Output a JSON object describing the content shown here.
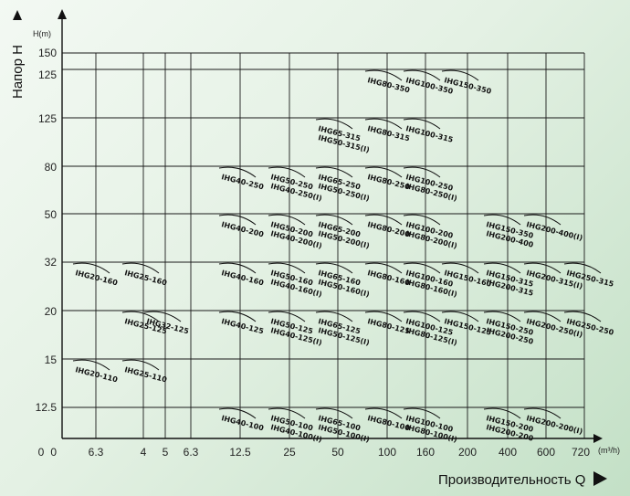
{
  "chart_data": {
    "type": "scatter",
    "xlabel": "Производительность Q",
    "ylabel": "Напор H",
    "x_unit": "(m³/h)",
    "y_unit": "H(m)",
    "x_ticks": [
      "0",
      "6.3",
      "4",
      "5",
      "6.3",
      "12.5",
      "25",
      "50",
      "100",
      "160",
      "200",
      "400",
      "600",
      "720"
    ],
    "y_ticks": [
      "150",
      "125",
      "125",
      "80",
      "50",
      "32",
      "20",
      "15",
      "12.5",
      "0"
    ],
    "models": [
      {
        "name": "IHG80-350",
        "col": 7,
        "row": 1
      },
      {
        "name": "IHG100-350",
        "col": 8,
        "row": 1
      },
      {
        "name": "IHG150-350",
        "col": 9,
        "row": 1
      },
      {
        "name": "IHG65-315",
        "col": 6,
        "row": 2
      },
      {
        "name": "IHG50-315(I)",
        "col": 6,
        "row": 2,
        "line": 2
      },
      {
        "name": "IHG80-315",
        "col": 7,
        "row": 2
      },
      {
        "name": "IHG100-315",
        "col": 8,
        "row": 2
      },
      {
        "name": "IHG40-250",
        "col": 4,
        "row": 3
      },
      {
        "name": "IHG50-250",
        "col": 5,
        "row": 3
      },
      {
        "name": "IHG40-250(I)",
        "col": 5,
        "row": 3,
        "line": 2
      },
      {
        "name": "IHG65-250",
        "col": 6,
        "row": 3
      },
      {
        "name": "IHG50-250(I)",
        "col": 6,
        "row": 3,
        "line": 2
      },
      {
        "name": "IHG80-250",
        "col": 7,
        "row": 3
      },
      {
        "name": "IHG100-250",
        "col": 8,
        "row": 3
      },
      {
        "name": "IHG80-250(I)",
        "col": 8,
        "row": 3,
        "line": 2
      },
      {
        "name": "IHG40-200",
        "col": 4,
        "row": 4
      },
      {
        "name": "IHG50-200",
        "col": 5,
        "row": 4
      },
      {
        "name": "IHG40-200(I)",
        "col": 5,
        "row": 4,
        "line": 2
      },
      {
        "name": "IHG65-200",
        "col": 6,
        "row": 4
      },
      {
        "name": "IHG50-200(I)",
        "col": 6,
        "row": 4,
        "line": 2
      },
      {
        "name": "IHG80-200",
        "col": 7,
        "row": 4
      },
      {
        "name": "IHG100-200",
        "col": 8,
        "row": 4
      },
      {
        "name": "IHG80-200(I)",
        "col": 8,
        "row": 4,
        "line": 2
      },
      {
        "name": "IHG150-350",
        "col": 10,
        "row": 4
      },
      {
        "name": "IHG200-400",
        "col": 10,
        "row": 4,
        "line": 2
      },
      {
        "name": "IHG200-400(I)",
        "col": 11,
        "row": 4
      },
      {
        "name": "IHG20-160",
        "col": 0,
        "row": 5
      },
      {
        "name": "IHG25-160",
        "col": 1,
        "row": 5
      },
      {
        "name": "IHG40-160",
        "col": 4,
        "row": 5
      },
      {
        "name": "IHG50-160",
        "col": 5,
        "row": 5
      },
      {
        "name": "IHG40-160(I)",
        "col": 5,
        "row": 5,
        "line": 2
      },
      {
        "name": "IHG65-160",
        "col": 6,
        "row": 5
      },
      {
        "name": "IHG50-160(I)",
        "col": 6,
        "row": 5,
        "line": 2
      },
      {
        "name": "IHG80-160",
        "col": 7,
        "row": 5
      },
      {
        "name": "IHG100-160",
        "col": 8,
        "row": 5
      },
      {
        "name": "IHG80-160(I)",
        "col": 8,
        "row": 5,
        "line": 2
      },
      {
        "name": "IHG150-160",
        "col": 9,
        "row": 5
      },
      {
        "name": "IHG150-315",
        "col": 10,
        "row": 5
      },
      {
        "name": "IHG200-315",
        "col": 10,
        "row": 5,
        "line": 2
      },
      {
        "name": "IHG200-315(I)",
        "col": 11,
        "row": 5
      },
      {
        "name": "IHG250-315",
        "col": 12,
        "row": 5
      },
      {
        "name": "IHG25-125",
        "col": 1,
        "row": 6
      },
      {
        "name": "IHG32-125",
        "col": 2,
        "row": 6
      },
      {
        "name": "IHG40-125",
        "col": 4,
        "row": 6
      },
      {
        "name": "IHG50-125",
        "col": 5,
        "row": 6
      },
      {
        "name": "IHG40-125(I)",
        "col": 5,
        "row": 6,
        "line": 2
      },
      {
        "name": "IHG65-125",
        "col": 6,
        "row": 6
      },
      {
        "name": "IHG50-125(I)",
        "col": 6,
        "row": 6,
        "line": 2
      },
      {
        "name": "IHG80-125",
        "col": 7,
        "row": 6
      },
      {
        "name": "IHG100-125",
        "col": 8,
        "row": 6
      },
      {
        "name": "IHG80-125(I)",
        "col": 8,
        "row": 6,
        "line": 2
      },
      {
        "name": "IHG150-125",
        "col": 9,
        "row": 6
      },
      {
        "name": "IHG150-250",
        "col": 10,
        "row": 6
      },
      {
        "name": "IHG200-250",
        "col": 10,
        "row": 6,
        "line": 2
      },
      {
        "name": "IHG200-250(I)",
        "col": 11,
        "row": 6
      },
      {
        "name": "IHG250-250",
        "col": 12,
        "row": 6
      },
      {
        "name": "IHG20-110",
        "col": 0,
        "row": 7
      },
      {
        "name": "IHG25-110",
        "col": 1,
        "row": 7
      },
      {
        "name": "IHG40-100",
        "col": 4,
        "row": 8
      },
      {
        "name": "IHG50-100",
        "col": 5,
        "row": 8
      },
      {
        "name": "IHG40-100(I)",
        "col": 5,
        "row": 8,
        "line": 2
      },
      {
        "name": "IHG65-100",
        "col": 6,
        "row": 8
      },
      {
        "name": "IHG50-100(I)",
        "col": 6,
        "row": 8,
        "line": 2
      },
      {
        "name": "IHG80-100",
        "col": 7,
        "row": 8
      },
      {
        "name": "IHG100-100",
        "col": 8,
        "row": 8
      },
      {
        "name": "IHG80-100(I)",
        "col": 8,
        "row": 8,
        "line": 2
      },
      {
        "name": "IHG150-200",
        "col": 10,
        "row": 8
      },
      {
        "name": "IHG200-200",
        "col": 10,
        "row": 8,
        "line": 2
      },
      {
        "name": "IHG200-200(I)",
        "col": 11,
        "row": 8
      }
    ],
    "grid": true
  }
}
